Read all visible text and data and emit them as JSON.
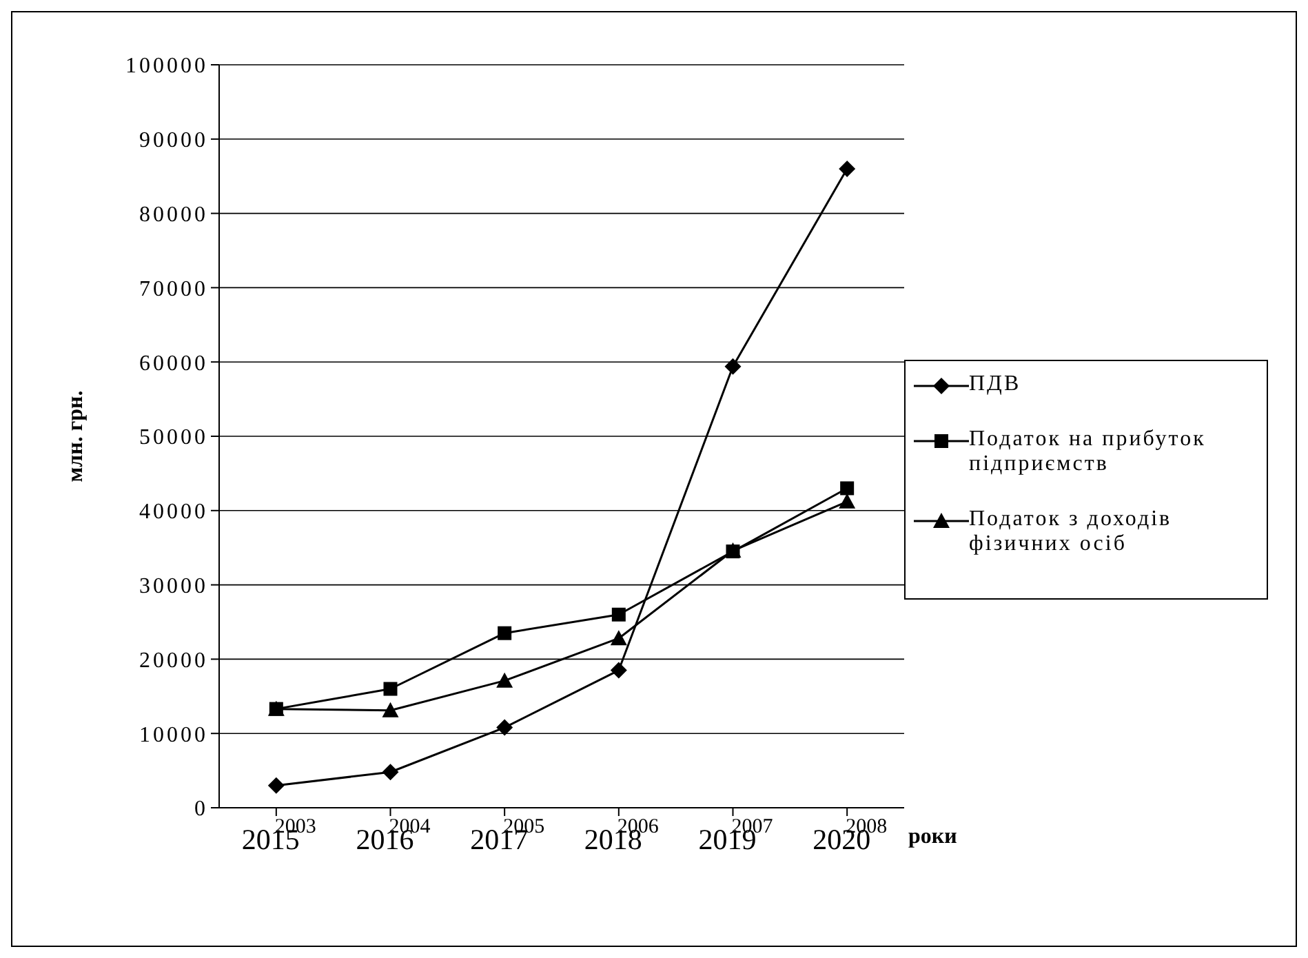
{
  "chart_data": {
    "type": "line",
    "ylabel": "млн. грн.",
    "xlabel": "роки",
    "categories": [
      "2003",
      "2004",
      "2005",
      "2006",
      "2007",
      "2008"
    ],
    "annotations": [
      "2015",
      "2016",
      "2017",
      "2018",
      "2019",
      "2020"
    ],
    "ylim": [
      0,
      100000
    ],
    "yticks": [
      0,
      10000,
      20000,
      30000,
      40000,
      50000,
      60000,
      70000,
      80000,
      90000,
      100000
    ],
    "grid": "y",
    "legend": "right",
    "series": [
      {
        "name": "ПДВ",
        "color": "#000000",
        "marker": "diamond",
        "values": [
          3000,
          4800,
          10800,
          18500,
          59400,
          86000
        ]
      },
      {
        "name": "Податок на прибуток підприємств",
        "color": "#000000",
        "marker": "square",
        "values": [
          13300,
          16000,
          23500,
          26000,
          34500,
          43000
        ]
      },
      {
        "name": "Податок з доходів фізичних осіб",
        "color": "#000000",
        "marker": "triangle",
        "values": [
          13300,
          13100,
          17100,
          22800,
          34600,
          41200
        ]
      }
    ]
  }
}
